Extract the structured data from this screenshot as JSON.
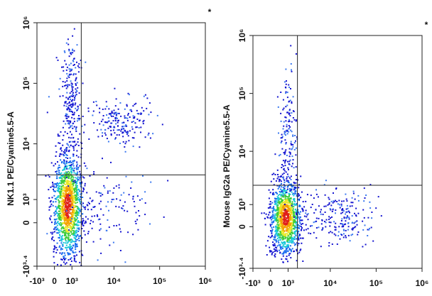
{
  "chart_data": [
    {
      "type": "scatter",
      "y_label": "NK1.1 PE/Cyanine5.5-A",
      "annotation": "*",
      "xlim": [
        -1000,
        1000000
      ],
      "ylim": [
        -2512,
        1000000
      ],
      "xticks": [
        {
          "value": -1000,
          "label": "-10³"
        },
        0,
        {
          "value": 1000,
          "label": "10³"
        },
        {
          "value": 10000,
          "label": "10⁴"
        },
        {
          "value": 100000,
          "label": "10⁵"
        },
        {
          "value": 1000000,
          "label": "10⁶"
        }
      ],
      "yticks": [
        {
          "value": -2512,
          "label": "-10³·⁴"
        },
        0,
        {
          "value": 1000,
          "label": "10³"
        },
        {
          "value": 10000,
          "label": "10⁴"
        },
        {
          "value": 100000,
          "label": "10⁵"
        },
        {
          "value": 1000000,
          "label": "10⁶"
        }
      ],
      "quadrant_x": 1800,
      "quadrant_y": 3000
    },
    {
      "type": "scatter",
      "y_label": "Mouse IgG2a PE/Cyanine5.5-A",
      "annotation": "*",
      "xlim": [
        -1000,
        1000000
      ],
      "ylim": [
        -2512,
        1000000
      ],
      "xticks": [
        {
          "value": -1000,
          "label": "-10³"
        },
        0,
        {
          "value": 1000,
          "label": "10³"
        },
        {
          "value": 10000,
          "label": "10⁴"
        },
        {
          "value": 100000,
          "label": "10⁵"
        },
        {
          "value": 1000000,
          "label": "10⁶"
        }
      ],
      "yticks": [
        {
          "value": -2512,
          "label": "-10³·⁴"
        },
        0,
        {
          "value": 1000,
          "label": "10³"
        },
        {
          "value": 10000,
          "label": "10⁴"
        },
        {
          "value": 100000,
          "label": "10⁵"
        },
        {
          "value": 1000000,
          "label": "10⁶"
        }
      ],
      "quadrant_x": 1800,
      "quadrant_y": 2500
    }
  ]
}
